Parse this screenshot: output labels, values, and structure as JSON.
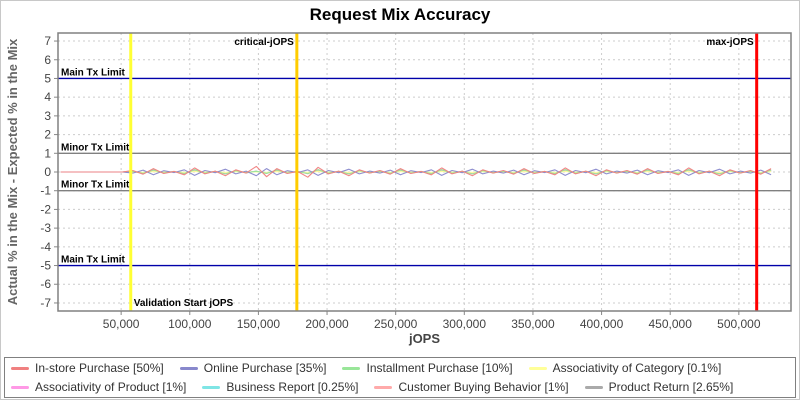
{
  "chart_data": {
    "type": "line",
    "title": "Request Mix Accuracy",
    "xlabel": "jOPS",
    "ylabel": "Actual % in the Mix - Expected % in the Mix",
    "xlim": [
      4000,
      538000
    ],
    "ylim": [
      -7.43,
      7.43
    ],
    "grid": "dashed",
    "legend_position": "bottom",
    "x_ticks": [
      {
        "value": 50000,
        "label": "50,000"
      },
      {
        "value": 100000,
        "label": "100,000"
      },
      {
        "value": 150000,
        "label": "150,000"
      },
      {
        "value": 200000,
        "label": "200,000"
      },
      {
        "value": 250000,
        "label": "250,000"
      },
      {
        "value": 300000,
        "label": "300,000"
      },
      {
        "value": 350000,
        "label": "350,000"
      },
      {
        "value": 400000,
        "label": "400,000"
      },
      {
        "value": 450000,
        "label": "450,000"
      },
      {
        "value": 500000,
        "label": "500,000"
      }
    ],
    "y_ticks": [
      -7,
      -6,
      -5,
      -4,
      -3,
      -2,
      -1,
      0,
      1,
      2,
      3,
      4,
      5,
      6,
      7
    ],
    "limit_lines": [
      {
        "label": "Main Tx Limit",
        "y": 5,
        "color": "#0000AA"
      },
      {
        "label": "Minor Tx Limit",
        "y": 1,
        "color": "#808080"
      },
      {
        "label": "Minor Tx Limit",
        "y": -1,
        "color": "#808080"
      },
      {
        "label": "Main Tx Limit",
        "y": -5,
        "color": "#0000AA"
      }
    ],
    "marker_lines": [
      {
        "label": "Validation Start jOPS",
        "x": 57000,
        "color": "#FFFF33",
        "width": 3,
        "label_pos": "bottom-right"
      },
      {
        "label": "critical-jOPS",
        "x": 178000,
        "color": "#FFCC00",
        "width": 3,
        "label_pos": "top-left"
      },
      {
        "label": "max-jOPS",
        "x": 513000,
        "color": "#FF0000",
        "width": 3,
        "label_pos": "top-left"
      }
    ],
    "x": [
      6000,
      13500,
      21000,
      28500,
      36000,
      43500,
      51000,
      58500,
      66000,
      73500,
      81000,
      88500,
      96000,
      103500,
      111000,
      118500,
      126000,
      133500,
      141000,
      148500,
      156000,
      163500,
      171000,
      178500,
      186000,
      193500,
      201000,
      208500,
      216000,
      223500,
      231000,
      238500,
      246000,
      253500,
      261000,
      268500,
      276000,
      283500,
      291000,
      298500,
      306000,
      313500,
      321000,
      328500,
      336000,
      343500,
      351000,
      358500,
      366000,
      373500,
      381000,
      388500,
      396000,
      403500,
      411000,
      418500,
      426000,
      433500,
      441000,
      448500,
      456000,
      463500,
      471000,
      478500,
      486000,
      493500,
      501000,
      508500,
      516000,
      523500
    ],
    "series": [
      {
        "name": "In-store Purchase [50%]",
        "color": "#F08080",
        "values": [
          0,
          0,
          0,
          0,
          0,
          0,
          0,
          0.08,
          -0.12,
          0.18,
          -0.08,
          0.03,
          -0.15,
          0.22,
          -0.1,
          0.05,
          -0.2,
          0.12,
          -0.06,
          0.3,
          -0.25,
          0.18,
          -0.08,
          0.03,
          -0.28,
          0.25,
          -0.1,
          0.05,
          -0.2,
          0.12,
          -0.06,
          0.08,
          -0.12,
          0.18,
          -0.08,
          0.03,
          -0.15,
          0.22,
          -0.1,
          0.05,
          -0.2,
          0.12,
          -0.06,
          0.08,
          -0.12,
          0.18,
          -0.08,
          0.03,
          -0.15,
          0.22,
          -0.1,
          0.05,
          -0.2,
          0.12,
          -0.06,
          0.08,
          -0.12,
          0.18,
          -0.08,
          0.03,
          -0.15,
          0.22,
          -0.1,
          0.05,
          -0.2,
          0.12,
          -0.06,
          0.08,
          -0.12,
          0.18
        ]
      },
      {
        "name": "Online Purchase [35%]",
        "color": "#8888CC",
        "values": [
          0,
          0,
          0,
          0,
          0,
          0,
          0,
          -0.06,
          0.1,
          -0.15,
          0.07,
          -0.03,
          0.12,
          -0.18,
          0.08,
          -0.04,
          0.15,
          -0.1,
          0.05,
          -0.2,
          0.18,
          -0.15,
          0.07,
          -0.03,
          0.12,
          -0.18,
          0.08,
          -0.04,
          0.15,
          -0.1,
          0.05,
          -0.06,
          0.1,
          -0.15,
          0.07,
          -0.03,
          0.12,
          -0.18,
          0.08,
          -0.04,
          0.15,
          -0.1,
          0.05,
          -0.06,
          0.1,
          -0.15,
          0.07,
          -0.03,
          0.12,
          -0.18,
          0.08,
          -0.04,
          0.15,
          -0.1,
          0.05,
          -0.06,
          0.1,
          -0.15,
          0.07,
          -0.03,
          0.12,
          -0.18,
          0.08,
          -0.04,
          0.15,
          -0.1,
          0.05,
          -0.06,
          0.1,
          -0.15
        ]
      },
      {
        "name": "Installment Purchase [10%]",
        "color": "#99E699",
        "values": [
          0,
          0,
          0,
          0,
          0,
          0,
          0,
          0.04,
          -0.07,
          0.1,
          -0.05,
          0.02,
          -0.08,
          0.12,
          -0.06,
          0.03,
          -0.1,
          0.07,
          -0.04,
          0.04,
          -0.07,
          0.1,
          -0.05,
          0.02,
          -0.08,
          0.12,
          -0.06,
          0.03,
          -0.1,
          0.07,
          -0.04,
          0.04,
          -0.07,
          0.1,
          -0.05,
          0.02,
          -0.08,
          0.12,
          -0.06,
          0.03,
          -0.1,
          0.07,
          -0.04,
          0.04,
          -0.07,
          0.1,
          -0.05,
          0.02,
          -0.08,
          0.12,
          -0.06,
          0.03,
          -0.1,
          0.07,
          -0.04,
          0.04,
          -0.07,
          0.1,
          -0.05,
          0.02,
          -0.08,
          0.12,
          -0.06,
          0.03,
          -0.1,
          0.07,
          -0.04,
          0.04,
          -0.07,
          0.1
        ]
      },
      {
        "name": "Associativity of Category [0.1%]",
        "color": "#FFFF99",
        "values": [
          0,
          0,
          0,
          0,
          0,
          0,
          0,
          0.01,
          -0.02,
          0.02,
          -0.01,
          0.01,
          -0.02,
          0.03,
          -0.01,
          0.01,
          -0.02,
          0.02,
          -0.01,
          0.01,
          -0.02,
          0.02,
          -0.01,
          0.01,
          -0.02,
          0.03,
          -0.01,
          0.01,
          -0.02,
          0.02,
          -0.01,
          0.01,
          -0.02,
          0.02,
          -0.01,
          0.01,
          -0.02,
          0.03,
          -0.01,
          0.01,
          -0.02,
          0.02,
          -0.01,
          0.01,
          -0.02,
          0.02,
          -0.01,
          0.01,
          -0.02,
          0.03,
          -0.01,
          0.01,
          -0.02,
          0.02,
          -0.01,
          0.01,
          -0.02,
          0.02,
          -0.01,
          0.01,
          -0.02,
          0.03,
          -0.01,
          0.01,
          -0.02,
          0.02,
          -0.01,
          0.01,
          -0.02,
          0.02
        ]
      },
      {
        "name": "Associativity of Product [1%]",
        "color": "#FF99E6",
        "values": [
          0,
          0,
          0,
          0,
          0,
          0,
          0,
          0.02,
          -0.04,
          0.05,
          -0.03,
          0.01,
          -0.04,
          0.06,
          -0.03,
          0.02,
          -0.05,
          0.04,
          -0.02,
          0.02,
          -0.04,
          0.05,
          -0.03,
          0.01,
          -0.04,
          0.06,
          -0.03,
          0.02,
          -0.05,
          0.04,
          -0.02,
          0.02,
          -0.04,
          0.05,
          -0.03,
          0.01,
          -0.04,
          0.06,
          -0.03,
          0.02,
          -0.05,
          0.04,
          -0.02,
          0.02,
          -0.04,
          0.05,
          -0.03,
          0.01,
          -0.04,
          0.06,
          -0.03,
          0.02,
          -0.05,
          0.04,
          -0.02,
          0.02,
          -0.04,
          0.05,
          -0.03,
          0.01,
          -0.04,
          0.06,
          -0.03,
          0.02,
          -0.05,
          0.04,
          -0.02,
          0.02,
          -0.04,
          0.05
        ]
      },
      {
        "name": "Business Report [0.25%]",
        "color": "#7FE5E5",
        "values": [
          0,
          0,
          0,
          0,
          0,
          0,
          0,
          0.01,
          -0.03,
          0.04,
          -0.02,
          0.01,
          -0.03,
          0.05,
          -0.02,
          0.01,
          -0.04,
          0.03,
          -0.01,
          0.01,
          -0.03,
          0.04,
          -0.02,
          0.01,
          -0.03,
          0.05,
          -0.02,
          0.01,
          -0.04,
          0.03,
          -0.01,
          0.01,
          -0.03,
          0.04,
          -0.02,
          0.01,
          -0.03,
          0.05,
          -0.02,
          0.01,
          -0.04,
          0.03,
          -0.01,
          0.01,
          -0.03,
          0.04,
          -0.02,
          0.01,
          -0.03,
          0.05,
          -0.02,
          0.01,
          -0.04,
          0.03,
          -0.01,
          0.01,
          -0.03,
          0.04,
          -0.02,
          0.01,
          -0.03,
          0.05,
          -0.02,
          0.01,
          -0.04,
          0.03,
          -0.01,
          0.01,
          -0.03,
          0.04
        ]
      },
      {
        "name": "Customer Buying Behavior [1%]",
        "color": "#FFAAAA",
        "values": [
          0,
          0,
          0,
          0,
          0,
          0,
          0,
          0.03,
          -0.06,
          0.08,
          -0.04,
          0.02,
          -0.07,
          0.1,
          -0.05,
          0.03,
          -0.08,
          0.06,
          -0.03,
          0.03,
          -0.06,
          0.08,
          -0.04,
          0.02,
          -0.07,
          0.1,
          -0.05,
          0.03,
          -0.08,
          0.06,
          -0.03,
          0.03,
          -0.06,
          0.08,
          -0.04,
          0.02,
          -0.07,
          0.1,
          -0.05,
          0.03,
          -0.08,
          0.06,
          -0.03,
          0.03,
          -0.06,
          0.08,
          -0.04,
          0.02,
          -0.07,
          0.1,
          -0.05,
          0.03,
          -0.08,
          0.06,
          -0.03,
          0.03,
          -0.06,
          0.08,
          -0.04,
          0.02,
          -0.07,
          0.1,
          -0.05,
          0.03,
          -0.08,
          0.06,
          -0.03,
          0.03,
          -0.06,
          0.08
        ]
      },
      {
        "name": "Product Return [2.65%]",
        "color": "#AAAAAA",
        "values": [
          0,
          0,
          0,
          0,
          0,
          0,
          0,
          0.05,
          -0.08,
          0.11,
          -0.06,
          0.03,
          -0.09,
          0.13,
          -0.07,
          0.04,
          -0.1,
          0.08,
          -0.05,
          0.05,
          -0.08,
          0.11,
          -0.06,
          0.03,
          -0.09,
          0.13,
          -0.07,
          0.04,
          -0.1,
          0.08,
          -0.05,
          0.05,
          -0.08,
          0.11,
          -0.06,
          0.03,
          -0.09,
          0.13,
          -0.07,
          0.04,
          -0.1,
          0.08,
          -0.05,
          0.05,
          -0.08,
          0.11,
          -0.06,
          0.03,
          -0.09,
          0.13,
          -0.07,
          0.04,
          -0.1,
          0.08,
          -0.05,
          0.05,
          -0.08,
          0.11,
          -0.06,
          0.03,
          -0.09,
          0.13,
          -0.07,
          0.04,
          -0.1,
          0.08,
          -0.05,
          0.05,
          -0.08,
          0.11
        ]
      }
    ],
    "style": {
      "grid_color": "#CCCCCC",
      "border_color": "#808080",
      "tick_label_color": "#444444",
      "annotation_color": "#000000"
    }
  }
}
